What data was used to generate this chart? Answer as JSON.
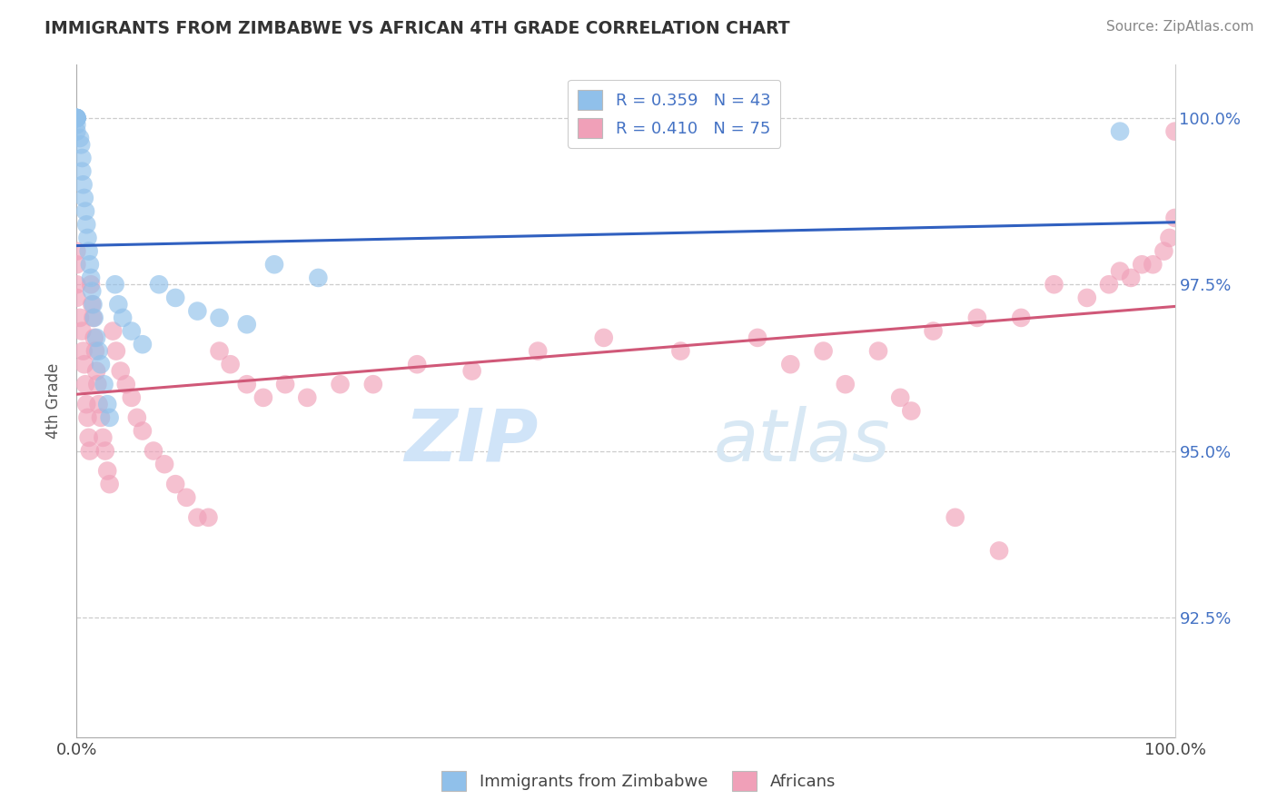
{
  "title": "IMMIGRANTS FROM ZIMBABWE VS AFRICAN 4TH GRADE CORRELATION CHART",
  "source": "Source: ZipAtlas.com",
  "ylabel": "4th Grade",
  "xlim": [
    0.0,
    1.0
  ],
  "ylim": [
    0.907,
    1.008
  ],
  "yticks": [
    0.925,
    0.95,
    0.975,
    1.0
  ],
  "ytick_labels": [
    "92.5%",
    "95.0%",
    "97.5%",
    "100.0%"
  ],
  "xticks": [
    0.0,
    1.0
  ],
  "xtick_labels": [
    "0.0%",
    "100.0%"
  ],
  "legend_r1": "R = 0.359",
  "legend_n1": "N = 43",
  "legend_r2": "R = 0.410",
  "legend_n2": "N = 75",
  "color_blue": "#90C0EA",
  "color_pink": "#F0A0B8",
  "color_blue_line": "#3060C0",
  "color_pink_line": "#D05878",
  "watermark_zip": "ZIP",
  "watermark_atlas": "atlas",
  "watermark_color": "#D0E4F8",
  "blue_scatter_x": [
    0.0,
    0.0,
    0.0,
    0.0,
    0.0,
    0.0,
    0.0,
    0.0,
    0.0,
    0.003,
    0.004,
    0.005,
    0.005,
    0.006,
    0.007,
    0.008,
    0.009,
    0.01,
    0.011,
    0.012,
    0.013,
    0.014,
    0.015,
    0.016,
    0.018,
    0.02,
    0.022,
    0.025,
    0.028,
    0.03,
    0.035,
    0.038,
    0.042,
    0.05,
    0.06,
    0.075,
    0.09,
    0.11,
    0.13,
    0.155,
    0.18,
    0.22,
    0.95
  ],
  "blue_scatter_y": [
    1.0,
    1.0,
    1.0,
    1.0,
    1.0,
    1.0,
    1.0,
    0.999,
    0.998,
    0.997,
    0.996,
    0.994,
    0.992,
    0.99,
    0.988,
    0.986,
    0.984,
    0.982,
    0.98,
    0.978,
    0.976,
    0.974,
    0.972,
    0.97,
    0.967,
    0.965,
    0.963,
    0.96,
    0.957,
    0.955,
    0.975,
    0.972,
    0.97,
    0.968,
    0.966,
    0.975,
    0.973,
    0.971,
    0.97,
    0.969,
    0.978,
    0.976,
    0.998
  ],
  "pink_scatter_x": [
    0.0,
    0.0,
    0.0,
    0.0,
    0.003,
    0.005,
    0.006,
    0.007,
    0.008,
    0.009,
    0.01,
    0.011,
    0.012,
    0.013,
    0.014,
    0.015,
    0.016,
    0.017,
    0.018,
    0.019,
    0.02,
    0.022,
    0.024,
    0.026,
    0.028,
    0.03,
    0.033,
    0.036,
    0.04,
    0.045,
    0.05,
    0.055,
    0.06,
    0.07,
    0.08,
    0.09,
    0.1,
    0.11,
    0.12,
    0.13,
    0.14,
    0.155,
    0.17,
    0.19,
    0.21,
    0.24,
    0.27,
    0.31,
    0.36,
    0.42,
    0.48,
    0.55,
    0.62,
    0.68,
    0.73,
    0.78,
    0.82,
    0.86,
    0.89,
    0.92,
    0.94,
    0.95,
    0.96,
    0.97,
    0.98,
    0.99,
    0.995,
    1.0,
    1.0,
    0.65,
    0.7,
    0.75,
    0.76,
    0.8,
    0.84
  ],
  "pink_scatter_y": [
    0.98,
    0.978,
    0.975,
    0.973,
    0.97,
    0.968,
    0.965,
    0.963,
    0.96,
    0.957,
    0.955,
    0.952,
    0.95,
    0.975,
    0.972,
    0.97,
    0.967,
    0.965,
    0.962,
    0.96,
    0.957,
    0.955,
    0.952,
    0.95,
    0.947,
    0.945,
    0.968,
    0.965,
    0.962,
    0.96,
    0.958,
    0.955,
    0.953,
    0.95,
    0.948,
    0.945,
    0.943,
    0.94,
    0.94,
    0.965,
    0.963,
    0.96,
    0.958,
    0.96,
    0.958,
    0.96,
    0.96,
    0.963,
    0.962,
    0.965,
    0.967,
    0.965,
    0.967,
    0.965,
    0.965,
    0.968,
    0.97,
    0.97,
    0.975,
    0.973,
    0.975,
    0.977,
    0.976,
    0.978,
    0.978,
    0.98,
    0.982,
    0.985,
    0.998,
    0.963,
    0.96,
    0.958,
    0.956,
    0.94,
    0.935
  ]
}
